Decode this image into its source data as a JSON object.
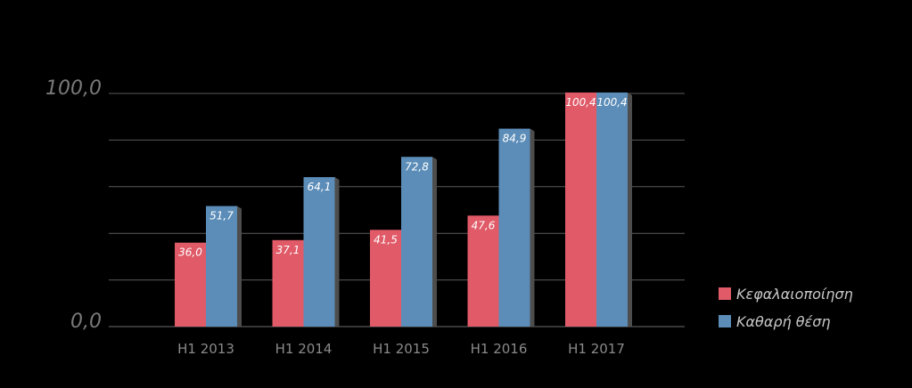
{
  "chart_data": {
    "type": "bar",
    "categories": [
      "H1 2013",
      "H1 2014",
      "H1 2015",
      "H1 2016",
      "H1 2017"
    ],
    "series": [
      {
        "name": "Κεφαλαιοποίηση",
        "values": [
          36.0,
          37.1,
          41.5,
          47.6,
          100.4
        ],
        "labels": [
          "36,0",
          "37,1",
          "41,5",
          "47,6",
          "100,4"
        ],
        "color": "#e05a68"
      },
      {
        "name": "Καθαρή θέση",
        "values": [
          51.7,
          64.1,
          72.8,
          84.9,
          100.4
        ],
        "labels": [
          "51,7",
          "64,1",
          "72,8",
          "84,9",
          "100,4"
        ],
        "color": "#5b8db8"
      }
    ],
    "yticks": [
      "0,0",
      "100,0"
    ],
    "ylim": [
      0,
      100
    ],
    "grid": true,
    "legend_position": "right",
    "background": "#000000"
  }
}
